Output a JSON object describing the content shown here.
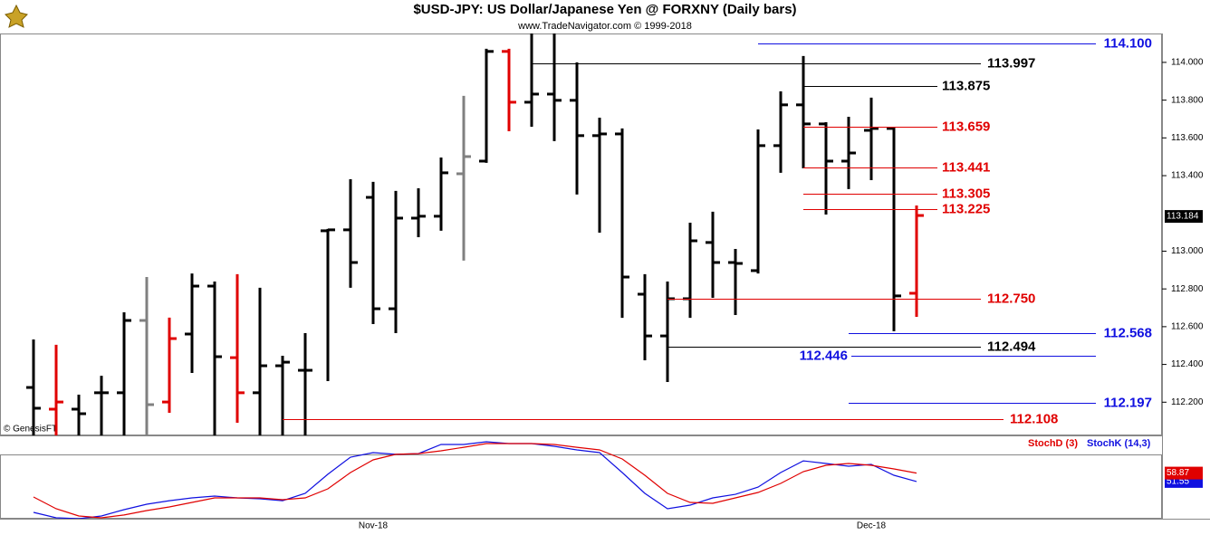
{
  "chart_data": [
    {
      "type": "ohlc",
      "title": "$USD-JPY:  US Dollar/Japanese Yen @ FORXNY  (Daily bars)",
      "subtitle": "www.TradeNavigator.com © 1999-2018",
      "source_note": "© GenesisFT",
      "x_labels": [
        "Nov-18",
        "Dec-18"
      ],
      "open": [
        112.278,
        112.163,
        112.163,
        112.25,
        112.25,
        112.633,
        112.201,
        112.561,
        112.815,
        112.436,
        112.25,
        112.393,
        112.369,
        113.108,
        113.113,
        113.285,
        112.695,
        113.175,
        113.185,
        113.41,
        113.477,
        114.058,
        113.789,
        113.832,
        113.799,
        113.612,
        113.621,
        112.772,
        112.551,
        112.748,
        113.046,
        112.94,
        112.897,
        113.559,
        113.775,
        113.674,
        113.477,
        113.64,
        113.65,
        112.777
      ],
      "high": [
        112.532,
        112.504,
        112.24,
        112.34,
        112.676,
        112.863,
        112.648,
        112.882,
        112.839,
        112.878,
        112.806,
        112.446,
        112.566,
        113.118,
        113.381,
        113.367,
        113.319,
        113.333,
        113.496,
        113.823,
        114.072,
        114.072,
        114.2,
        114.2,
        114.0,
        113.707,
        113.65,
        112.878,
        112.839,
        113.151,
        113.209,
        113.012,
        113.645,
        113.847,
        114.034,
        113.683,
        113.712,
        113.813,
        113.655,
        113.242
      ],
      "low": [
        111.93,
        111.98,
        111.98,
        111.96,
        111.96,
        111.96,
        112.144,
        112.355,
        111.96,
        112.091,
        111.96,
        111.96,
        111.96,
        112.312,
        112.806,
        112.614,
        112.566,
        113.074,
        113.108,
        112.95,
        113.468,
        113.635,
        113.659,
        113.583,
        113.3,
        113.098,
        112.647,
        112.422,
        112.307,
        112.647,
        112.753,
        112.662,
        112.882,
        113.415,
        113.439,
        113.194,
        113.329,
        113.376,
        112.576,
        112.652
      ],
      "close": [
        112.168,
        112.201,
        112.139,
        112.25,
        112.633,
        112.187,
        112.537,
        112.815,
        112.441,
        112.25,
        112.393,
        112.412,
        112.369,
        113.113,
        112.94,
        112.695,
        113.175,
        113.185,
        113.415,
        113.501,
        114.058,
        113.789,
        113.832,
        113.799,
        113.612,
        113.621,
        112.863,
        112.551,
        112.748,
        113.055,
        112.94,
        112.935,
        113.559,
        113.775,
        113.674,
        113.477,
        113.52,
        113.65,
        112.763,
        113.189
      ],
      "colors": [
        "#000000",
        "#e00000",
        "#000000",
        "#000000",
        "#000000",
        "#808080",
        "#e00000",
        "#000000",
        "#000000",
        "#e00000",
        "#000000",
        "#000000",
        "#000000",
        "#000000",
        "#000000",
        "#000000",
        "#000000",
        "#000000",
        "#000000",
        "#808080",
        "#000000",
        "#e00000",
        "#000000",
        "#000000",
        "#000000",
        "#000000",
        "#000000",
        "#000000",
        "#000000",
        "#000000",
        "#000000",
        "#000000",
        "#000000",
        "#000000",
        "#000000",
        "#000000",
        "#000000",
        "#000000",
        "#000000",
        "#e00000"
      ],
      "levels": [
        {
          "value": 114.1,
          "label": "114.100",
          "color": "#1010e0"
        },
        {
          "value": 113.997,
          "label": "113.997",
          "color": "#000000"
        },
        {
          "value": 113.875,
          "label": "113.875",
          "color": "#000000"
        },
        {
          "value": 113.659,
          "label": "113.659",
          "color": "#e00000"
        },
        {
          "value": 113.441,
          "label": "113.441",
          "color": "#e00000"
        },
        {
          "value": 113.305,
          "label": "113.305",
          "color": "#e00000"
        },
        {
          "value": 113.225,
          "label": "113.225",
          "color": "#e00000"
        },
        {
          "value": 112.75,
          "label": "112.750",
          "color": "#e00000"
        },
        {
          "value": 112.568,
          "label": "112.568",
          "color": "#1010e0"
        },
        {
          "value": 112.494,
          "label": "112.494",
          "color": "#000000"
        },
        {
          "value": 112.446,
          "label": "112.446",
          "color": "#1010e0"
        },
        {
          "value": 112.197,
          "label": "112.197",
          "color": "#1010e0"
        },
        {
          "value": 112.108,
          "label": "112.108",
          "color": "#e00000"
        }
      ],
      "last_price": {
        "value": 113.184,
        "label": "113.184"
      },
      "ylim": [
        112.024,
        114.153
      ],
      "yticks": [
        {
          "value": 114,
          "label": "114.000"
        },
        {
          "value": 113.8,
          "label": "113.800"
        },
        {
          "value": 113.6,
          "label": "113.600"
        },
        {
          "value": 113.4,
          "label": "113.400"
        },
        {
          "value": 113,
          "label": "113.000"
        },
        {
          "value": 112.8,
          "label": "112.800"
        },
        {
          "value": 112.6,
          "label": "112.600"
        },
        {
          "value": 112.4,
          "label": "112.400"
        },
        {
          "value": 112.2,
          "label": "112.200"
        }
      ]
    },
    {
      "type": "line",
      "ylim": [
        20,
        90
      ],
      "series": [
        {
          "name": "StochK (14,3)",
          "color": "#1010e0",
          "values": [
            24.7,
            20.0,
            19.2,
            21.6,
            27.1,
            31.8,
            34.9,
            37.3,
            38.9,
            37.3,
            36.5,
            34.9,
            41.2,
            57.8,
            72.7,
            76.6,
            75.1,
            75.8,
            83.7,
            83.7,
            86.1,
            84.5,
            84.5,
            82.1,
            79.0,
            76.6,
            59.3,
            41.2,
            27.9,
            31.0,
            37.3,
            40.4,
            46.7,
            59.3,
            69.5,
            67.2,
            64.8,
            66.4,
            57.0,
            51.55
          ]
        },
        {
          "name": "StochD (3)",
          "color": "#e00000",
          "values": [
            38.1,
            27.9,
            21.6,
            20.0,
            22.4,
            26.3,
            29.4,
            33.4,
            37.3,
            37.3,
            37.3,
            35.7,
            37.3,
            45.2,
            59.3,
            70.3,
            75.1,
            75.8,
            78.2,
            81.3,
            84.5,
            84.5,
            84.5,
            83.7,
            81.3,
            79.0,
            71.1,
            57.0,
            41.2,
            33.4,
            32.6,
            37.3,
            42.0,
            49.9,
            60.1,
            65.6,
            67.2,
            65.6,
            62.5,
            58.87
          ]
        }
      ]
    }
  ]
}
